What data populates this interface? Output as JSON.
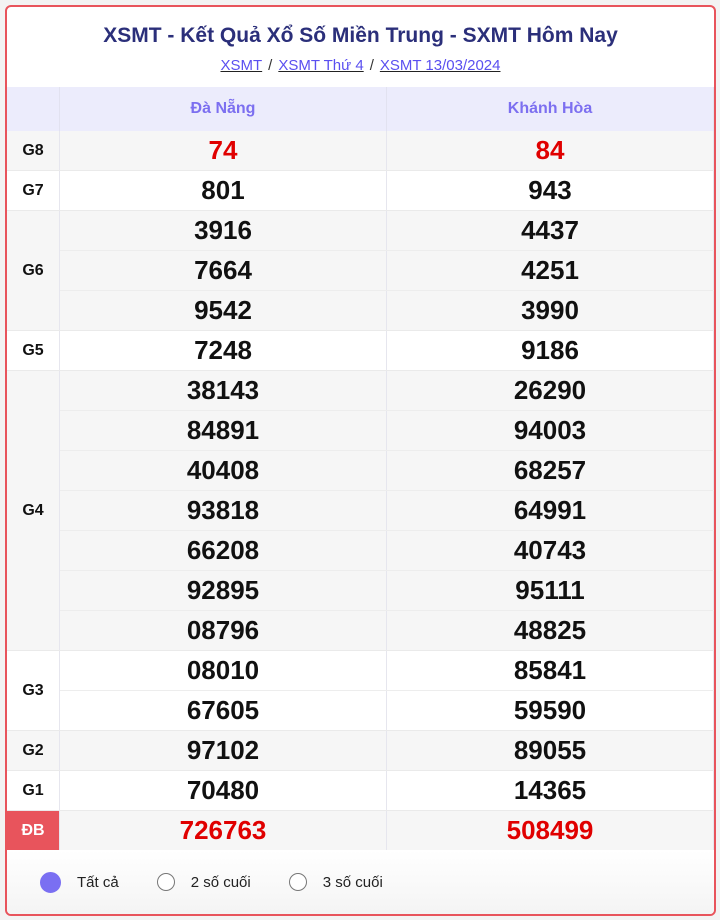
{
  "header": {
    "title": "XSMT - Kết Quả Xổ Số Miền Trung - SXMT Hôm Nay",
    "breadcrumb": [
      "XSMT",
      "XSMT Thứ 4",
      "XSMT 13/03/2024"
    ]
  },
  "table": {
    "provinces": [
      "Đà Nẵng",
      "Khánh Hòa"
    ],
    "prizes": [
      {
        "label": "G8",
        "red": true,
        "rows": [
          [
            "74",
            "84"
          ]
        ]
      },
      {
        "label": "G7",
        "rows": [
          [
            "801",
            "943"
          ]
        ]
      },
      {
        "label": "G6",
        "rows": [
          [
            "3916",
            "4437"
          ],
          [
            "7664",
            "4251"
          ],
          [
            "9542",
            "3990"
          ]
        ]
      },
      {
        "label": "G5",
        "rows": [
          [
            "7248",
            "9186"
          ]
        ]
      },
      {
        "label": "G4",
        "rows": [
          [
            "38143",
            "26290"
          ],
          [
            "84891",
            "94003"
          ],
          [
            "40408",
            "68257"
          ],
          [
            "93818",
            "64991"
          ],
          [
            "66208",
            "40743"
          ],
          [
            "92895",
            "95111"
          ],
          [
            "08796",
            "48825"
          ]
        ]
      },
      {
        "label": "G3",
        "rows": [
          [
            "08010",
            "85841"
          ],
          [
            "67605",
            "59590"
          ]
        ]
      },
      {
        "label": "G2",
        "rows": [
          [
            "97102",
            "89055"
          ]
        ]
      },
      {
        "label": "G1",
        "rows": [
          [
            "70480",
            "14365"
          ]
        ]
      },
      {
        "label": "ĐB",
        "red": true,
        "special": true,
        "rows": [
          [
            "726763",
            "508499"
          ]
        ]
      }
    ]
  },
  "filter": {
    "options": [
      "Tất cả",
      "2 số cuối",
      "3 số cuối"
    ],
    "selected": "Tất cả"
  },
  "colors": {
    "accent": "#7a6ff2",
    "title": "#2b2f7a",
    "highlight": "#e00000",
    "border": "#e8545c"
  }
}
